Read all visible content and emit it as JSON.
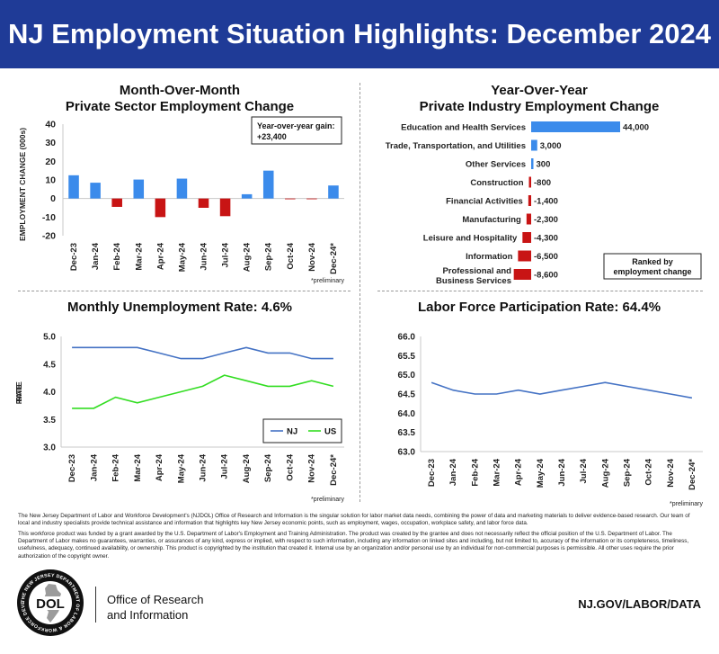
{
  "header": {
    "title": "NJ Employment Situation Highlights: December 2024"
  },
  "footer": {
    "about": "The New Jersey Department of Labor and Workforce Development's (NJDOL) Office of Research and Information is the singular solution for labor market data needs, combining the power of data and marketing materials to deliver evidence-based research. Our team of local and industry specialists provide technical assistance and information that highlights key New Jersey economic points, such as employment, wages, occupation, workplace safety, and labor force data.",
    "disclaimer": "This workforce product was funded by a grant awarded by the U.S. Department of Labor's Employment and Training Administration. The product was created by the grantee and does not necessarily reflect the official position of the U.S. Department of Labor. The Department of Labor makes no guarantees, warranties, or assurances of any kind, express or implied, with respect to such information, including any information on linked sites and including, but not limited to, accuracy of the information or its completeness, timeliness, usefulness, adequacy, continued availability, or ownership. This product is copyrighted by the institution that created it. Internal use by an organization and/or personal use by an individual for non-commercial purposes is permissible. All other uses require the prior authorization of the copyright owner.",
    "logo_text": "DOL",
    "logo_ring_text": "THE NEW JERSEY DEPARTMENT OF LABOR & WORKFORCE DEVELOPMENT",
    "office_line1": "Office of Research",
    "office_line2": "and Information",
    "website": "NJ.GOV/LABOR/DATA"
  },
  "chart_data": [
    {
      "type": "bar",
      "title": "Month-Over-Month",
      "subtitle": "Private Sector Employment Change",
      "ylabel": "EMPLOYMENT CHANGE (000s)",
      "ylim": [
        -20,
        40
      ],
      "yticks": [
        "40",
        "30",
        "20",
        "10",
        "0",
        "-10",
        "-20"
      ],
      "categories": [
        "Dec-23",
        "Jan-24",
        "Feb-24",
        "Mar-24",
        "Apr-24",
        "May-24",
        "Jun-24",
        "Jul-24",
        "Aug-24",
        "Sep-24",
        "Oct-24",
        "Nov-24",
        "Dec-24*"
      ],
      "values": [
        12.5,
        8.5,
        -4.5,
        10.2,
        -10,
        10.7,
        -5,
        -9.5,
        2.3,
        15,
        -0.4,
        -0.2,
        7
      ],
      "positive_color": "#3b8beb",
      "negative_color": "#c81414",
      "callout_line1": "Year-over-year gain:",
      "callout_line2": "+23,400",
      "note": "*preliminary",
      "grid": false
    },
    {
      "type": "bar",
      "orientation": "horizontal",
      "title": "Year-Over-Year",
      "subtitle": "Private Industry Employment Change",
      "categories": [
        "Education and Health Services",
        "Trade, Transportation, and Utilities",
        "Other Services",
        "Construction",
        "Financial Activities",
        "Manufacturing",
        "Leisure and Hospitality",
        "Information",
        "Professional and Business Services"
      ],
      "values": [
        44000,
        3000,
        300,
        -800,
        -1400,
        -2300,
        -4300,
        -6500,
        -8600
      ],
      "value_labels": [
        "44,000",
        "3,000",
        "300",
        "-800",
        "-1,400",
        "-2,300",
        "-4,300",
        "-6,500",
        "-8,600"
      ],
      "positive_color": "#3b8beb",
      "negative_color": "#c81414",
      "legend_note_line1": "Ranked by",
      "legend_note_line2": "employment change"
    },
    {
      "type": "line",
      "title": "Monthly Unemployment Rate: 4.6%",
      "ylabel": "RATE",
      "ylim": [
        3.0,
        5.0
      ],
      "yticks": [
        "5.0",
        "4.5",
        "4.0",
        "3.5",
        "3.0"
      ],
      "categories": [
        "Dec-23",
        "Jan-24",
        "Feb-24",
        "Mar-24",
        "Apr-24",
        "May-24",
        "Jun-24",
        "Jul-24",
        "Aug-24",
        "Sep-24",
        "Oct-24",
        "Nov-24",
        "Dec-24*"
      ],
      "series": [
        {
          "name": "NJ",
          "color": "#4472c4",
          "values": [
            4.8,
            4.8,
            4.8,
            4.8,
            4.7,
            4.6,
            4.6,
            4.7,
            4.8,
            4.7,
            4.7,
            4.6,
            4.6
          ]
        },
        {
          "name": "US",
          "color": "#33dd22",
          "values": [
            3.7,
            3.7,
            3.9,
            3.8,
            3.9,
            4.0,
            4.1,
            4.3,
            4.2,
            4.1,
            4.1,
            4.2,
            4.1
          ]
        }
      ],
      "legend": "bottom-right",
      "note": "*preliminary",
      "grid": false
    },
    {
      "type": "line",
      "title": "Labor Force Participation Rate: 64.4%",
      "ylabel": "RATE",
      "ylim": [
        63.0,
        66.0
      ],
      "yticks": [
        "66.0",
        "65.5",
        "65.0",
        "64.5",
        "64.0",
        "63.5",
        "63.0"
      ],
      "categories": [
        "Dec-23",
        "Jan-24",
        "Feb-24",
        "Mar-24",
        "Apr-24",
        "May-24",
        "Jun-24",
        "Jul-24",
        "Aug-24",
        "Sep-24",
        "Oct-24",
        "Nov-24",
        "Dec-24*"
      ],
      "series": [
        {
          "color": "#4472c4",
          "values": [
            64.8,
            64.6,
            64.5,
            64.5,
            64.6,
            64.5,
            64.6,
            64.7,
            64.8,
            64.7,
            64.6,
            64.5,
            64.4
          ]
        }
      ],
      "note": "*preliminary",
      "grid": false
    }
  ]
}
